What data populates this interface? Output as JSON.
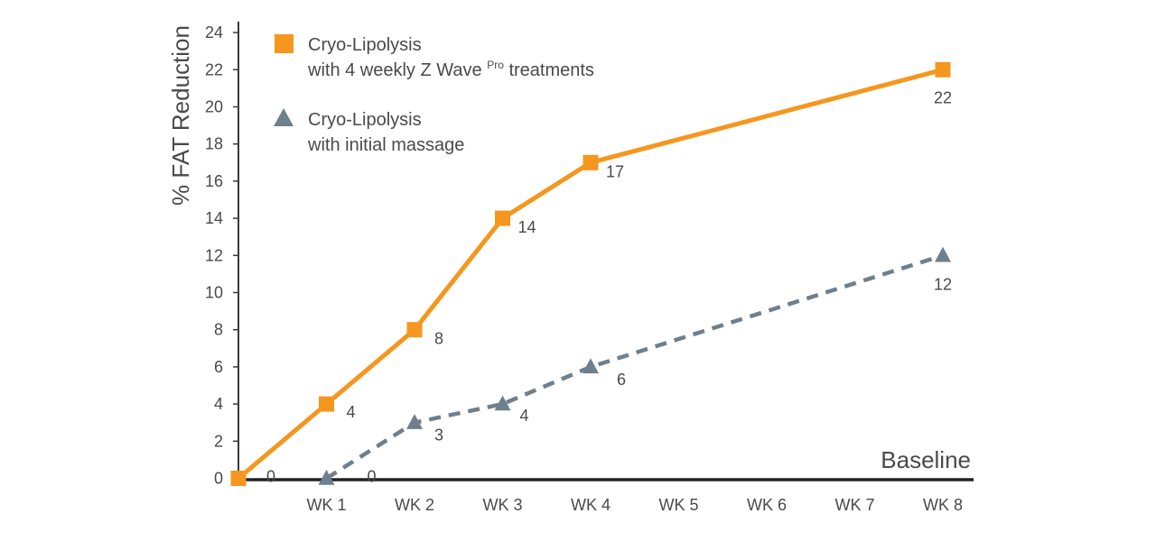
{
  "chart_data": {
    "type": "line",
    "ylabel": "% FAT Reduction",
    "xlabel": "",
    "baseline_label": "Baseline",
    "ylim": [
      0,
      24
    ],
    "yticks": [
      "0",
      "2",
      "4",
      "6",
      "8",
      "10",
      "12",
      "14",
      "16",
      "18",
      "20",
      "22",
      "24"
    ],
    "categories": [
      "",
      "WK 1",
      "WK 2",
      "WK 3",
      "WK 4",
      "WK 5",
      "WK 6",
      "WK 7",
      "WK 8"
    ],
    "grid": false,
    "legend_position": "top-left",
    "series": [
      {
        "name_line1": "Cryo-Lipolysis",
        "name_line2_prefix": "with 4 weekly Z Wave",
        "name_line2_sup": "Pro",
        "name_line2_suffix": " treatments",
        "color": "#f5961e",
        "marker": "square",
        "line_style": "solid",
        "points": [
          {
            "x": 0,
            "y": 0
          },
          {
            "x": 1,
            "y": 4
          },
          {
            "x": 2,
            "y": 8
          },
          {
            "x": 3,
            "y": 14
          },
          {
            "x": 4,
            "y": 17
          },
          {
            "x": 8,
            "y": 22
          }
        ],
        "labels": [
          "0",
          "4",
          "8",
          "14",
          "17",
          "22"
        ]
      },
      {
        "name_line1": "Cryo-Lipolysis",
        "name_line2": "with initial massage",
        "color": "#6e7f8d",
        "marker": "triangle",
        "line_style": "dashed",
        "points": [
          {
            "x": 1,
            "y": 0
          },
          {
            "x": 2,
            "y": 3
          },
          {
            "x": 3,
            "y": 4
          },
          {
            "x": 4,
            "y": 6
          },
          {
            "x": 8,
            "y": 12
          }
        ],
        "labels": [
          "0",
          "3",
          "4",
          "6",
          "12"
        ]
      }
    ],
    "colors": {
      "axis": "#3a3a3a",
      "text": "#4a4a4a"
    }
  }
}
